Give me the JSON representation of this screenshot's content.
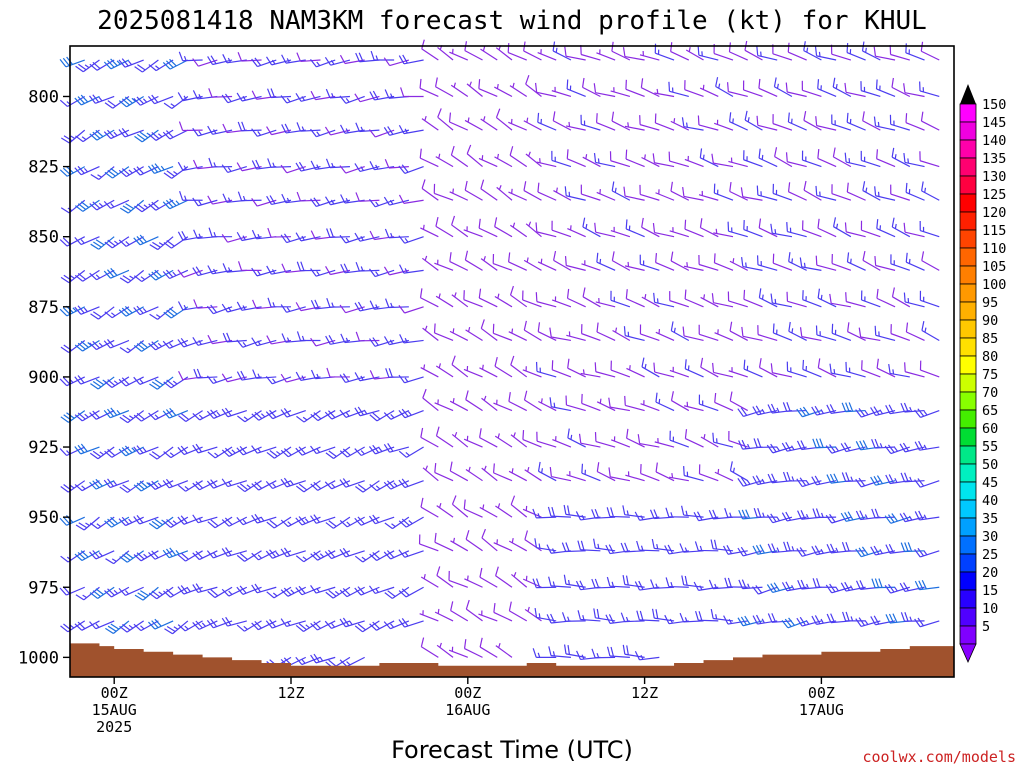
{
  "chart_data": {
    "type": "wind-barb time-height cross section",
    "title": "2025081418 NAM3KM forecast wind profile (kt) for KHUL",
    "xlabel": "Forecast Time (UTC)",
    "ylabel": "",
    "y_axis": {
      "scale": "pressure (reversed, top = low pressure)",
      "range": [
        782,
        1007
      ],
      "ticks": [
        "800",
        "825",
        "850",
        "875",
        "900",
        "925",
        "950",
        "975",
        "1000"
      ]
    },
    "x_axis": {
      "units": "forecast hour from 2025-08-14 18Z",
      "range": [
        3,
        63
      ],
      "ticks": [
        {
          "hour": 6,
          "label": "00Z",
          "sub1": "15AUG",
          "sub2": "2025"
        },
        {
          "hour": 18,
          "label": "12Z",
          "sub1": "",
          "sub2": ""
        },
        {
          "hour": 30,
          "label": "00Z",
          "sub1": "16AUG",
          "sub2": ""
        },
        {
          "hour": 42,
          "label": "12Z",
          "sub1": "",
          "sub2": ""
        },
        {
          "hour": 54,
          "label": "00Z",
          "sub1": "17AUG",
          "sub2": ""
        }
      ]
    },
    "pressure_levels": [
      787,
      800,
      812,
      825,
      837,
      850,
      862,
      875,
      887,
      900,
      912,
      925,
      937,
      950,
      962,
      975,
      987,
      1000
    ],
    "terrain_surface_pressure": [
      [
        3,
        995
      ],
      [
        5,
        996
      ],
      [
        6,
        997
      ],
      [
        8,
        998
      ],
      [
        10,
        999
      ],
      [
        12,
        1000
      ],
      [
        14,
        1001
      ],
      [
        16,
        1002
      ],
      [
        18,
        1003
      ],
      [
        20,
        1003
      ],
      [
        22,
        1003
      ],
      [
        24,
        1002
      ],
      [
        26,
        1002
      ],
      [
        28,
        1003
      ],
      [
        30,
        1003
      ],
      [
        32,
        1003
      ],
      [
        34,
        1002
      ],
      [
        36,
        1003
      ],
      [
        38,
        1003
      ],
      [
        40,
        1003
      ],
      [
        42,
        1003
      ],
      [
        44,
        1002
      ],
      [
        46,
        1001
      ],
      [
        48,
        1000
      ],
      [
        50,
        999
      ],
      [
        52,
        999
      ],
      [
        54,
        998
      ],
      [
        56,
        998
      ],
      [
        58,
        997
      ],
      [
        60,
        996
      ],
      [
        63,
        996
      ]
    ],
    "wind_regimes": [
      {
        "hours": [
          3,
          12
        ],
        "levels": [
          787,
          1000
        ],
        "direction_deg": 240,
        "speed_kt": [
          15,
          35
        ],
        "peak": "35 kt near 925-960 hPa"
      },
      {
        "hours": [
          12,
          28
        ],
        "levels": [
          787,
          900
        ],
        "direction_deg": 260,
        "speed_kt": [
          10,
          20
        ]
      },
      {
        "hours": [
          12,
          28
        ],
        "levels": [
          900,
          1000
        ],
        "direction_deg": 245,
        "speed_kt": [
          15,
          25
        ]
      },
      {
        "hours": [
          28,
          36
        ],
        "levels": [
          787,
          1000
        ],
        "direction_deg": 300,
        "speed_kt": [
          5,
          10
        ]
      },
      {
        "hours": [
          36,
          50
        ],
        "levels": [
          787,
          940
        ],
        "direction_deg": 290,
        "speed_kt": [
          5,
          15
        ]
      },
      {
        "hours": [
          36,
          50
        ],
        "levels": [
          940,
          1000
        ],
        "direction_deg": 270,
        "speed_kt": [
          15,
          20
        ]
      },
      {
        "hours": [
          50,
          63
        ],
        "levels": [
          787,
          900
        ],
        "direction_deg": 290,
        "speed_kt": [
          10,
          15
        ]
      },
      {
        "hours": [
          50,
          63
        ],
        "levels": [
          900,
          1000
        ],
        "direction_deg": 260,
        "speed_kt": [
          20,
          30
        ]
      }
    ],
    "grid": false,
    "legend": "right colorbar",
    "colorbar": {
      "units": "kt",
      "labels": [
        "150",
        "145",
        "140",
        "135",
        "130",
        "125",
        "120",
        "115",
        "110",
        "105",
        "100",
        "95",
        "90",
        "85",
        "80",
        "75",
        "70",
        "65",
        "60",
        "55",
        "50",
        "45",
        "40",
        "35",
        "30",
        "25",
        "20",
        "15",
        "10",
        "5"
      ],
      "colors": [
        "#ff00ff",
        "#f000e0",
        "#ff00aa",
        "#ff0070",
        "#ff0040",
        "#ff0000",
        "#ff2000",
        "#ff4400",
        "#ff6600",
        "#ff7f00",
        "#ff9900",
        "#ffb000",
        "#ffc800",
        "#ffe000",
        "#ffff00",
        "#ccff00",
        "#88ff00",
        "#44ee00",
        "#00dd33",
        "#00e888",
        "#00f0c0",
        "#00e5ee",
        "#00c8ff",
        "#00a0ff",
        "#0070ff",
        "#0040ff",
        "#0000ff",
        "#2800ff",
        "#5000ff",
        "#8000ff"
      ],
      "top_color": "#000000",
      "bottom_color": "#8800ff"
    }
  },
  "credit": "coolwx.com/models",
  "colors": {
    "terrain": "#a0522d",
    "barb_low": "#8a2be2",
    "barb_mid": "#4b3cf0",
    "barb_high": "#1e6fe0"
  }
}
